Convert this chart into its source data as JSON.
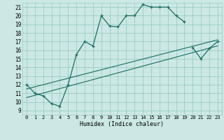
{
  "xlabel": "Humidex (Indice chaleur)",
  "bg_color": "#cce8e4",
  "grid_color": "#99ccc7",
  "line_color": "#1a6e64",
  "xlim": [
    -0.5,
    23.5
  ],
  "ylim": [
    8.5,
    21.5
  ],
  "xticks": [
    0,
    1,
    2,
    3,
    4,
    5,
    6,
    7,
    8,
    9,
    10,
    11,
    12,
    13,
    14,
    15,
    16,
    17,
    18,
    19,
    20,
    21,
    22,
    23
  ],
  "yticks": [
    9,
    10,
    11,
    12,
    13,
    14,
    15,
    16,
    17,
    18,
    19,
    20,
    21
  ],
  "series_main": {
    "x": [
      0,
      1,
      2,
      3,
      4,
      5,
      6,
      7,
      8,
      9,
      10,
      11,
      12,
      13,
      14,
      15,
      16,
      17,
      18,
      19
    ],
    "y": [
      12,
      11,
      10.7,
      9.8,
      9.5,
      12,
      15.5,
      17,
      16.5,
      20,
      18.8,
      18.7,
      20,
      20,
      21.3,
      21,
      21,
      21,
      20,
      19.3
    ]
  },
  "series_right": {
    "x": [
      20,
      21,
      22,
      23
    ],
    "y": [
      16.3,
      15,
      16.2,
      17
    ]
  },
  "line1": {
    "x": [
      0,
      23
    ],
    "y": [
      11.5,
      17.2
    ]
  },
  "line2": {
    "x": [
      0,
      23
    ],
    "y": [
      10.5,
      16.5
    ]
  }
}
